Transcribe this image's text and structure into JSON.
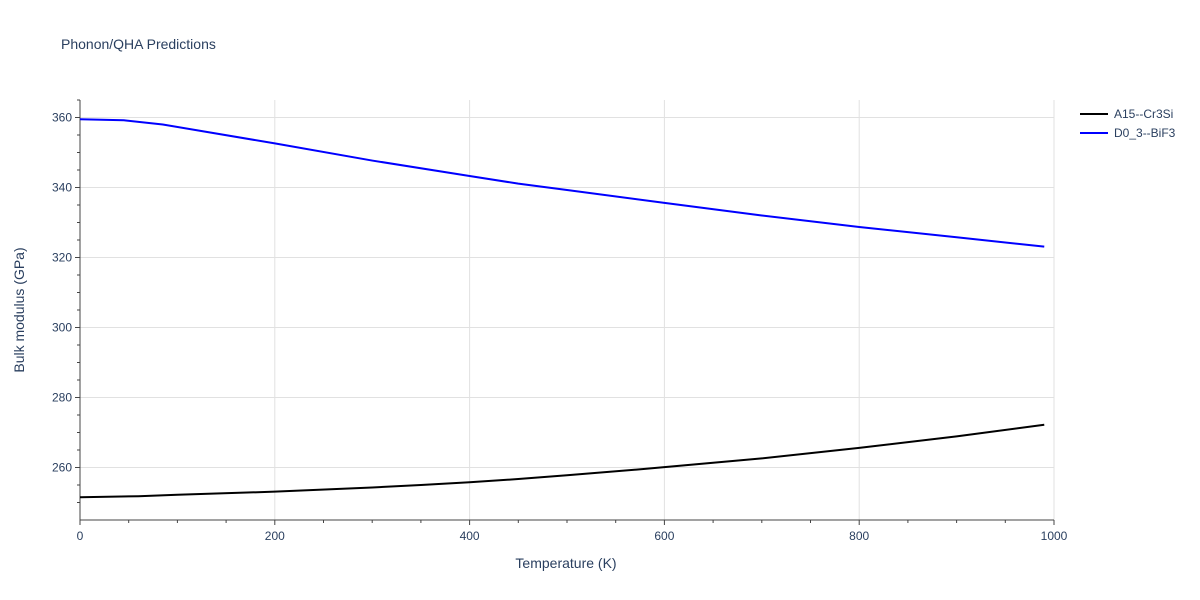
{
  "chart_data": {
    "type": "line",
    "title": "Phonon/QHA Predictions",
    "xlabel": "Temperature (K)",
    "ylabel": "Bulk modulus (GPa)",
    "xlim": [
      0,
      1000
    ],
    "ylim": [
      245,
      365
    ],
    "xticks": [
      0,
      200,
      400,
      600,
      800,
      1000
    ],
    "xtick_labels": [
      "0",
      "200",
      "400",
      "600",
      "800",
      "1000"
    ],
    "yticks": [
      260,
      280,
      300,
      320,
      340,
      360
    ],
    "ytick_labels": [
      "260",
      "280",
      "300",
      "320",
      "340",
      "360"
    ],
    "grid": true,
    "legend_position": "top-right",
    "series": [
      {
        "name": "A15--Cr3Si",
        "color": "#000000",
        "x": [
          0,
          60,
          100,
          200,
          300,
          350,
          400,
          450,
          500,
          580,
          600,
          700,
          800,
          900,
          990
        ],
        "y": [
          251.5,
          251.8,
          252.2,
          253.1,
          254.3,
          255.0,
          255.8,
          256.7,
          257.8,
          259.6,
          260.1,
          262.6,
          265.6,
          268.9,
          272.2
        ]
      },
      {
        "name": "D0_3--BiF3",
        "color": "#0000ff",
        "x": [
          0,
          45,
          85,
          200,
          300,
          400,
          450,
          500,
          600,
          700,
          800,
          900,
          990
        ],
        "y": [
          359.5,
          359.2,
          358.0,
          352.6,
          347.7,
          343.3,
          341.1,
          339.3,
          335.6,
          332.0,
          328.7,
          325.8,
          323.1
        ]
      }
    ]
  }
}
